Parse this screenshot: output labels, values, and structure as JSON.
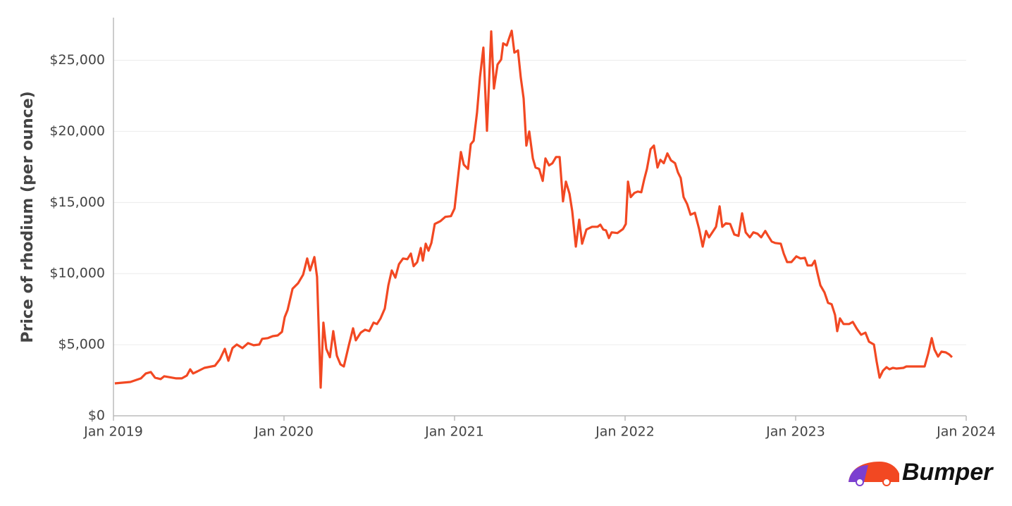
{
  "chart_data": {
    "type": "line",
    "y_label": "Price of rhodium (per ounce)",
    "xlim": [
      2019,
      2024
    ],
    "xticks": [
      {
        "value": 2019,
        "label": "Jan 2019"
      },
      {
        "value": 2020,
        "label": "Jan 2020"
      },
      {
        "value": 2021,
        "label": "Jan 2021"
      },
      {
        "value": 2022,
        "label": "Jan 2022"
      },
      {
        "value": 2023,
        "label": "Jan 2023"
      },
      {
        "value": 2024,
        "label": "Jan 2024"
      }
    ],
    "ylim": [
      0,
      28000
    ],
    "yticks": [
      {
        "value": 0,
        "label": "$0"
      },
      {
        "value": 5000,
        "label": "$5,000"
      },
      {
        "value": 10000,
        "label": "$10,000"
      },
      {
        "value": 15000,
        "label": "$15,000"
      },
      {
        "value": 20000,
        "label": "$20,000"
      },
      {
        "value": 25000,
        "label": "$25,000"
      }
    ],
    "grid": true,
    "x": [
      2019.008,
      2019.099,
      2019.161,
      2019.19,
      2019.219,
      2019.244,
      2019.277,
      2019.298,
      2019.368,
      2019.401,
      2019.43,
      2019.45,
      2019.467,
      2019.492,
      2019.533,
      2019.595,
      2019.624,
      2019.653,
      2019.674,
      2019.698,
      2019.723,
      2019.756,
      2019.789,
      2019.822,
      2019.855,
      2019.872,
      2019.905,
      2019.934,
      2019.963,
      2019.988,
      2020.004,
      2020.021,
      2020.05,
      2020.083,
      2020.112,
      2020.136,
      2020.153,
      2020.178,
      2020.194,
      2020.215,
      2020.231,
      2020.248,
      2020.269,
      2020.289,
      2020.31,
      2020.331,
      2020.351,
      2020.38,
      2020.405,
      2020.421,
      2020.45,
      2020.475,
      2020.5,
      2020.525,
      2020.545,
      2020.566,
      2020.591,
      2020.612,
      2020.632,
      2020.653,
      2020.674,
      2020.698,
      2020.723,
      2020.744,
      2020.76,
      2020.781,
      2020.802,
      2020.814,
      2020.831,
      2020.847,
      2020.864,
      2020.884,
      2020.917,
      2020.946,
      2020.979,
      2021.0,
      2021.021,
      2021.037,
      2021.054,
      2021.079,
      2021.095,
      2021.112,
      2021.132,
      2021.149,
      2021.169,
      2021.19,
      2021.215,
      2021.231,
      2021.252,
      2021.273,
      2021.285,
      2021.306,
      2021.318,
      2021.335,
      2021.351,
      2021.372,
      2021.388,
      2021.405,
      2021.421,
      2021.438,
      2021.459,
      2021.475,
      2021.496,
      2021.517,
      2021.533,
      2021.554,
      2021.574,
      2021.595,
      2021.616,
      2021.636,
      2021.653,
      2021.674,
      2021.69,
      2021.711,
      2021.731,
      2021.748,
      2021.773,
      2021.806,
      2021.839,
      2021.855,
      2021.872,
      2021.888,
      2021.905,
      2021.921,
      2021.955,
      2021.988,
      2022.004,
      2022.017,
      2022.033,
      2022.054,
      2022.074,
      2022.095,
      2022.112,
      2022.128,
      2022.149,
      2022.169,
      2022.19,
      2022.207,
      2022.227,
      2022.248,
      2022.269,
      2022.293,
      2022.31,
      2022.326,
      2022.343,
      2022.364,
      2022.384,
      2022.409,
      2022.434,
      2022.455,
      2022.475,
      2022.492,
      2022.517,
      2022.533,
      2022.554,
      2022.57,
      2022.591,
      2022.616,
      2022.64,
      2022.665,
      2022.686,
      2022.707,
      2022.731,
      2022.752,
      2022.777,
      2022.798,
      2022.822,
      2022.839,
      2022.86,
      2022.88,
      2022.913,
      2022.93,
      2022.95,
      2022.975,
      2023.004,
      2023.029,
      2023.054,
      2023.07,
      2023.095,
      2023.112,
      2023.128,
      2023.145,
      2023.169,
      2023.19,
      2023.211,
      2023.231,
      2023.244,
      2023.26,
      2023.281,
      2023.314,
      2023.335,
      2023.36,
      2023.384,
      2023.409,
      2023.43,
      2023.459,
      2023.475,
      2023.492,
      2023.512,
      2023.533,
      2023.55,
      2023.57,
      2023.591,
      2023.632,
      2023.649,
      2023.756,
      2023.777,
      2023.798,
      2023.814,
      2023.835,
      2023.855,
      2023.88,
      2023.901,
      2023.917
    ],
    "series": [
      {
        "color": "#f24822",
        "values": [
          2280,
          2380,
          2630,
          2980,
          3080,
          2680,
          2580,
          2780,
          2630,
          2630,
          2830,
          3270,
          2980,
          3120,
          3370,
          3520,
          3970,
          4710,
          3870,
          4760,
          5010,
          4760,
          5110,
          4960,
          5010,
          5410,
          5460,
          5600,
          5650,
          5900,
          6940,
          7440,
          8930,
          9330,
          9920,
          11060,
          10220,
          11160,
          9770,
          1980,
          6550,
          4710,
          4120,
          5950,
          4220,
          3620,
          3470,
          4960,
          6150,
          5310,
          5850,
          6050,
          5950,
          6550,
          6450,
          6850,
          7540,
          9180,
          10220,
          9720,
          10660,
          11060,
          11010,
          11410,
          10520,
          10810,
          11800,
          10910,
          12100,
          11610,
          12150,
          13490,
          13690,
          13990,
          14040,
          14580,
          16860,
          18550,
          17660,
          17360,
          19100,
          19340,
          21330,
          23810,
          25890,
          20040,
          27030,
          23010,
          24700,
          25050,
          26190,
          26040,
          26490,
          27080,
          25540,
          25690,
          23810,
          22320,
          19000,
          19990,
          18100,
          17460,
          17360,
          16520,
          18100,
          17610,
          17760,
          18200,
          18200,
          15080,
          16470,
          15620,
          14380,
          11900,
          13790,
          12100,
          13100,
          13290,
          13290,
          13440,
          13100,
          13040,
          12500,
          12900,
          12850,
          13140,
          13490,
          16470,
          15380,
          15670,
          15770,
          15720,
          16620,
          17360,
          18750,
          19000,
          17460,
          18000,
          17760,
          18450,
          17960,
          17760,
          17110,
          16720,
          15380,
          14880,
          14140,
          14280,
          13140,
          11900,
          13000,
          12550,
          13000,
          13290,
          14730,
          13290,
          13540,
          13490,
          12750,
          12650,
          14240,
          12900,
          12550,
          12900,
          12800,
          12550,
          13000,
          12650,
          12250,
          12150,
          12100,
          11410,
          10810,
          10810,
          11210,
          11060,
          11110,
          10570,
          10570,
          10910,
          10020,
          9180,
          8680,
          7940,
          7840,
          7090,
          5950,
          6850,
          6450,
          6450,
          6600,
          6100,
          5700,
          5850,
          5210,
          5010,
          3820,
          2680,
          3170,
          3420,
          3270,
          3370,
          3320,
          3370,
          3470,
          3470,
          4360,
          5460,
          4660,
          4170,
          4510,
          4460,
          4310,
          4120
        ]
      }
    ]
  },
  "logo": {
    "text": "Bumper"
  }
}
